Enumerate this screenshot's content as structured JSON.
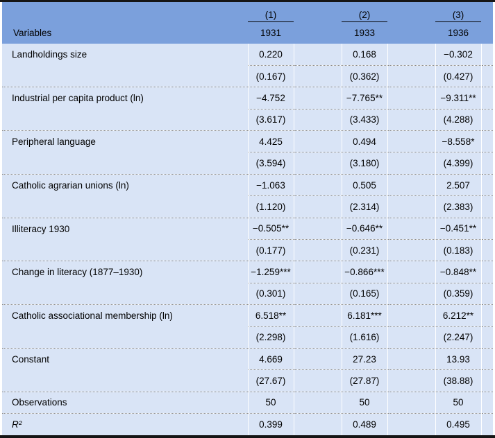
{
  "table": {
    "header": {
      "variables_label": "Variables",
      "model_numbers": [
        "(1)",
        "(2)",
        "(3)"
      ],
      "years": [
        "1931",
        "1933",
        "1936"
      ]
    },
    "rows": [
      {
        "label": "Landholdings size",
        "coefs": [
          "0.220",
          "0.168",
          "−0.302"
        ],
        "ses": [
          "(0.167)",
          "(0.362)",
          "(0.427)"
        ]
      },
      {
        "label": "Industrial per capita product (ln)",
        "coefs": [
          "−4.752",
          "−7.765**",
          "−9.311**"
        ],
        "ses": [
          "(3.617)",
          "(3.433)",
          "(4.288)"
        ]
      },
      {
        "label": "Peripheral language",
        "coefs": [
          "4.425",
          "0.494",
          "−8.558*"
        ],
        "ses": [
          "(3.594)",
          "(3.180)",
          "(4.399)"
        ]
      },
      {
        "label": "Catholic agrarian unions (ln)",
        "coefs": [
          "−1.063",
          "0.505",
          "2.507"
        ],
        "ses": [
          "(1.120)",
          "(2.314)",
          "(2.383)"
        ]
      },
      {
        "label": "Illiteracy 1930",
        "coefs": [
          "−0.505**",
          "−0.646**",
          "−0.451**"
        ],
        "ses": [
          "(0.177)",
          "(0.231)",
          "(0.183)"
        ]
      },
      {
        "label": "Change in literacy (1877–1930)",
        "coefs": [
          "−1.259***",
          "−0.866***",
          "−0.848**"
        ],
        "ses": [
          "(0.301)",
          "(0.165)",
          "(0.359)"
        ]
      },
      {
        "label": "Catholic associational membership (ln)",
        "coefs": [
          "6.518**",
          "6.181***",
          "6.212**"
        ],
        "ses": [
          "(2.298)",
          "(1.616)",
          "(2.247)"
        ]
      },
      {
        "label": "Constant",
        "coefs": [
          "4.669",
          "27.23",
          "13.93"
        ],
        "ses": [
          "(27.67)",
          "(27.87)",
          "(38.88)"
        ]
      }
    ],
    "summary_rows": [
      {
        "label": "Observations",
        "values": [
          "50",
          "50",
          "50"
        ]
      },
      {
        "label": "R²",
        "values": [
          "0.399",
          "0.489",
          "0.495"
        ]
      }
    ],
    "colors": {
      "header_bg": "#7ba0dc",
      "body_bg": "#d9e4f6",
      "rule_black": "#151515",
      "dotted_gray": "#8a8a8a"
    }
  }
}
